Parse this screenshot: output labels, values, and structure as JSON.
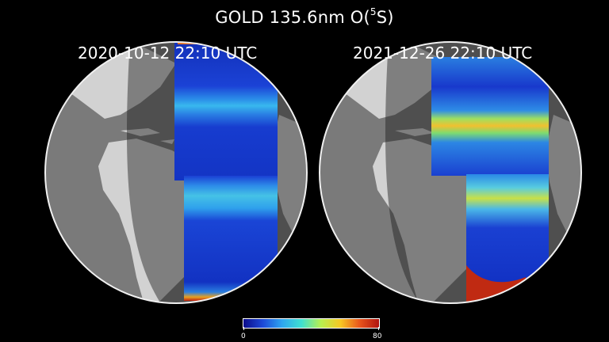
{
  "title": {
    "prefix": "GOLD 135.6nm O(",
    "superscript": "5",
    "suffix": "S)"
  },
  "panels": [
    {
      "timestamp": "2020-10-12  22:10 UTC"
    },
    {
      "timestamp": "2021-12-26  22:10 UTC"
    }
  ],
  "colorbar": {
    "min_label": "0",
    "max_label": "80",
    "min": 0,
    "max": 80,
    "colors": [
      "#0c0c8a",
      "#1d49d8",
      "#2ea6f0",
      "#3fe0d0",
      "#b8f050",
      "#f6c823",
      "#e8551c",
      "#b01410"
    ]
  },
  "colors": {
    "background": "#000000",
    "land": "#d2d2d2",
    "ocean": "#7a7a7a",
    "night_shade": "#4a4a4a",
    "text": "#ffffff"
  }
}
